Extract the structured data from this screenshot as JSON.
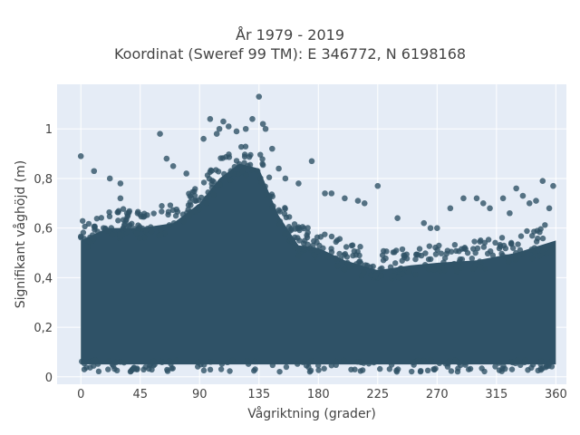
{
  "chart_data": {
    "type": "scatter",
    "title_line1": "År 1979 - 2019",
    "title_line2": "Koordinat (Sweref 99 TM): E 346772, N 6198168",
    "xlabel": "Vågriktning (grader)",
    "ylabel": "Signifikant våghöjd (m)",
    "xlim": [
      -18,
      368
    ],
    "ylim": [
      -0.03,
      1.18
    ],
    "x_ticks": [
      0,
      45,
      90,
      135,
      180,
      225,
      270,
      315,
      360
    ],
    "x_tick_labels": [
      "0",
      "45",
      "90",
      "135",
      "180",
      "225",
      "270",
      "315",
      "360"
    ],
    "y_ticks": [
      0,
      0.2,
      0.4,
      0.6,
      0.8,
      1
    ],
    "y_tick_labels": [
      "0",
      "0,2",
      "0,4",
      "0,6",
      "0,8",
      "1"
    ],
    "grid": true,
    "marker_color": "#2f5267",
    "upper_envelope": [
      {
        "x": 0,
        "y": 0.55
      },
      {
        "x": 20,
        "y": 0.6
      },
      {
        "x": 45,
        "y": 0.6
      },
      {
        "x": 70,
        "y": 0.62
      },
      {
        "x": 90,
        "y": 0.7
      },
      {
        "x": 105,
        "y": 0.8
      },
      {
        "x": 120,
        "y": 0.86
      },
      {
        "x": 135,
        "y": 0.84
      },
      {
        "x": 150,
        "y": 0.65
      },
      {
        "x": 165,
        "y": 0.53
      },
      {
        "x": 180,
        "y": 0.52
      },
      {
        "x": 200,
        "y": 0.47
      },
      {
        "x": 225,
        "y": 0.43
      },
      {
        "x": 250,
        "y": 0.45
      },
      {
        "x": 270,
        "y": 0.46
      },
      {
        "x": 300,
        "y": 0.47
      },
      {
        "x": 330,
        "y": 0.5
      },
      {
        "x": 360,
        "y": 0.55
      }
    ],
    "outliers": [
      {
        "x": 0,
        "y": 0.89
      },
      {
        "x": 10,
        "y": 0.83
      },
      {
        "x": 22,
        "y": 0.8
      },
      {
        "x": 30,
        "y": 0.78
      },
      {
        "x": 30,
        "y": 0.72
      },
      {
        "x": 35,
        "y": 0.66
      },
      {
        "x": 60,
        "y": 0.98
      },
      {
        "x": 65,
        "y": 0.88
      },
      {
        "x": 70,
        "y": 0.85
      },
      {
        "x": 80,
        "y": 0.82
      },
      {
        "x": 93,
        "y": 0.96
      },
      {
        "x": 98,
        "y": 1.04
      },
      {
        "x": 103,
        "y": 0.98
      },
      {
        "x": 105,
        "y": 1.0
      },
      {
        "x": 108,
        "y": 1.03
      },
      {
        "x": 112,
        "y": 1.01
      },
      {
        "x": 118,
        "y": 0.99
      },
      {
        "x": 125,
        "y": 1.0
      },
      {
        "x": 130,
        "y": 1.04
      },
      {
        "x": 135,
        "y": 1.13
      },
      {
        "x": 138,
        "y": 1.02
      },
      {
        "x": 140,
        "y": 1.0
      },
      {
        "x": 145,
        "y": 0.92
      },
      {
        "x": 150,
        "y": 0.84
      },
      {
        "x": 155,
        "y": 0.8
      },
      {
        "x": 165,
        "y": 0.78
      },
      {
        "x": 175,
        "y": 0.87
      },
      {
        "x": 185,
        "y": 0.74
      },
      {
        "x": 190,
        "y": 0.74
      },
      {
        "x": 200,
        "y": 0.72
      },
      {
        "x": 210,
        "y": 0.71
      },
      {
        "x": 215,
        "y": 0.7
      },
      {
        "x": 225,
        "y": 0.77
      },
      {
        "x": 240,
        "y": 0.64
      },
      {
        "x": 260,
        "y": 0.62
      },
      {
        "x": 265,
        "y": 0.6
      },
      {
        "x": 270,
        "y": 0.6
      },
      {
        "x": 280,
        "y": 0.68
      },
      {
        "x": 290,
        "y": 0.72
      },
      {
        "x": 300,
        "y": 0.72
      },
      {
        "x": 305,
        "y": 0.7
      },
      {
        "x": 310,
        "y": 0.68
      },
      {
        "x": 320,
        "y": 0.72
      },
      {
        "x": 325,
        "y": 0.66
      },
      {
        "x": 330,
        "y": 0.76
      },
      {
        "x": 335,
        "y": 0.73
      },
      {
        "x": 340,
        "y": 0.7
      },
      {
        "x": 345,
        "y": 0.71
      },
      {
        "x": 350,
        "y": 0.79
      },
      {
        "x": 355,
        "y": 0.68
      },
      {
        "x": 358,
        "y": 0.77
      }
    ]
  }
}
